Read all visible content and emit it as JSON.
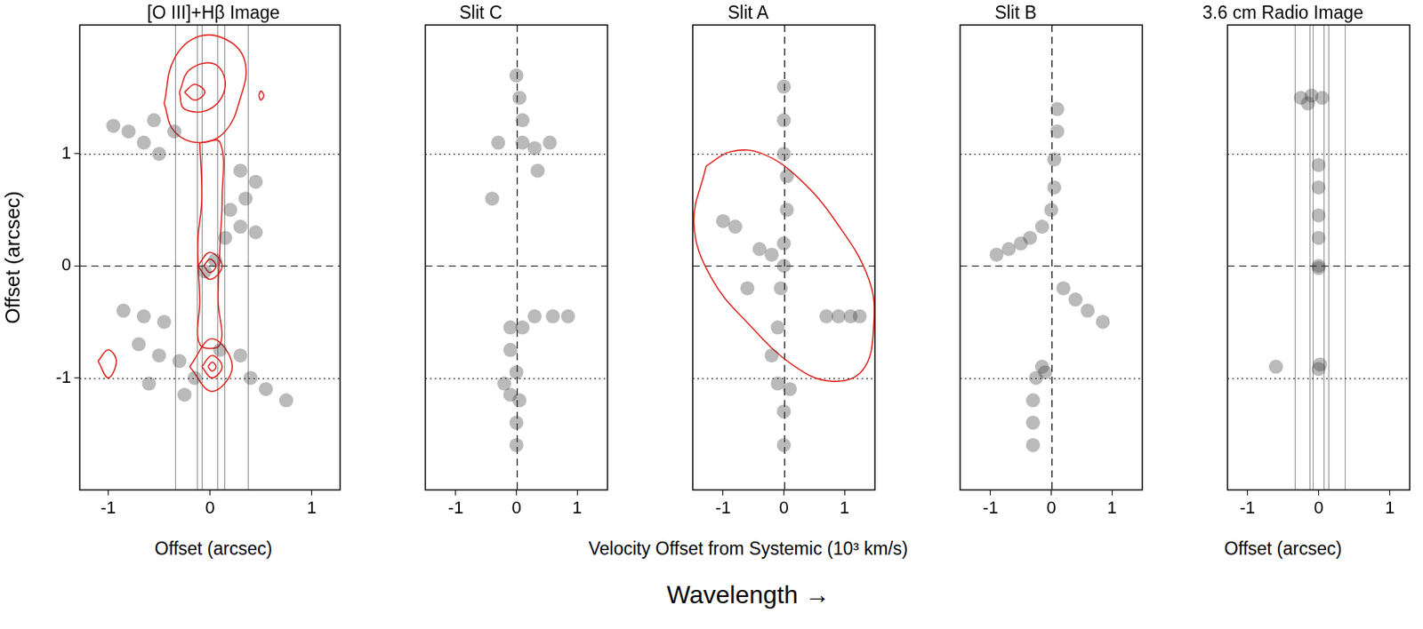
{
  "figure": {
    "x_label": "Velocity Offset from Systemic (10³ km/s)",
    "annotation": "Wavelength →"
  },
  "chart_data": [
    {
      "type": "scatter",
      "title": "[O III]+Hβ Image",
      "x_label": "Offset (arcsec)",
      "y_label": "Offset (arcsec)",
      "xlim": [
        -1.28,
        1.28
      ],
      "ylim": [
        -2,
        2.15
      ],
      "xticks": [
        -1,
        0,
        1
      ],
      "yticks": [
        -1,
        0,
        1
      ],
      "grid": "y",
      "tick_labels": true,
      "slit_edges": [
        -0.34,
        -0.13,
        -0.08,
        0.07,
        0.14,
        0.37
      ],
      "series": [
        {
          "type": "scatter",
          "color": "#3a3a3a",
          "values": [
            [
              -0.95,
              1.25
            ],
            [
              -0.8,
              1.2
            ],
            [
              -0.65,
              1.1
            ],
            [
              -0.5,
              1.0
            ],
            [
              -0.55,
              1.3
            ],
            [
              -0.35,
              1.2
            ],
            [
              0.3,
              0.85
            ],
            [
              0.45,
              0.75
            ],
            [
              0.35,
              0.6
            ],
            [
              0.2,
              0.5
            ],
            [
              0.3,
              0.35
            ],
            [
              0.45,
              0.3
            ],
            [
              0.15,
              0.25
            ],
            [
              0.05,
              0.05
            ],
            [
              -0.05,
              -0.05
            ],
            [
              -0.85,
              -0.4
            ],
            [
              -0.65,
              -0.45
            ],
            [
              -0.45,
              -0.5
            ],
            [
              -0.7,
              -0.7
            ],
            [
              -0.5,
              -0.8
            ],
            [
              -0.3,
              -0.85
            ],
            [
              -0.15,
              -1.0
            ],
            [
              -0.25,
              -1.15
            ],
            [
              0.1,
              -0.75
            ],
            [
              0.3,
              -0.8
            ],
            [
              0.4,
              -1.0
            ],
            [
              0.55,
              -1.1
            ],
            [
              0.75,
              -1.2
            ],
            [
              -0.6,
              -1.05
            ]
          ]
        },
        {
          "type": "line",
          "color": "#e0201b",
          "values": [
            [
              -0.45,
              1.45
            ],
            [
              -0.35,
              1.85
            ],
            [
              -0.1,
              2.05
            ],
            [
              0.2,
              2.0
            ],
            [
              0.35,
              1.8
            ],
            [
              0.3,
              1.5
            ],
            [
              0.15,
              1.2
            ],
            [
              -0.1,
              1.1
            ],
            [
              -0.35,
              1.2
            ],
            [
              -0.45,
              1.45
            ]
          ]
        },
        {
          "type": "line",
          "color": "#e0201b",
          "values": [
            [
              -0.3,
              1.55
            ],
            [
              -0.2,
              1.75
            ],
            [
              0.05,
              1.8
            ],
            [
              0.15,
              1.6
            ],
            [
              0.0,
              1.4
            ],
            [
              -0.25,
              1.4
            ],
            [
              -0.3,
              1.55
            ]
          ]
        },
        {
          "type": "line",
          "color": "#e0201b",
          "values": [
            [
              -0.25,
              1.55
            ],
            [
              -0.15,
              1.62
            ],
            [
              -0.05,
              1.55
            ],
            [
              -0.15,
              1.48
            ],
            [
              -0.25,
              1.55
            ]
          ]
        },
        {
          "type": "line",
          "color": "#e0201b",
          "values": [
            [
              -0.1,
              1.1
            ],
            [
              -0.08,
              0.6
            ],
            [
              -0.12,
              0.2
            ],
            [
              -0.1,
              -0.3
            ],
            [
              -0.1,
              -0.7
            ],
            [
              0.1,
              -0.7
            ],
            [
              0.08,
              -0.3
            ],
            [
              0.1,
              0.2
            ],
            [
              0.12,
              0.6
            ],
            [
              0.1,
              1.1
            ],
            [
              -0.1,
              1.1
            ]
          ]
        },
        {
          "type": "line",
          "color": "#e0201b",
          "values": [
            [
              -0.12,
              0.0
            ],
            [
              0.0,
              0.12
            ],
            [
              0.12,
              0.0
            ],
            [
              0.0,
              -0.12
            ],
            [
              -0.12,
              0.0
            ]
          ]
        },
        {
          "type": "line",
          "color": "#e0201b",
          "values": [
            [
              -0.06,
              0.0
            ],
            [
              0.0,
              0.06
            ],
            [
              0.06,
              0.0
            ],
            [
              0.0,
              -0.06
            ],
            [
              -0.06,
              0.0
            ]
          ]
        },
        {
          "type": "line",
          "color": "#e0201b",
          "values": [
            [
              -0.2,
              -0.9
            ],
            [
              0.02,
              -0.65
            ],
            [
              0.22,
              -0.9
            ],
            [
              0.02,
              -1.12
            ],
            [
              -0.2,
              -0.9
            ]
          ]
        },
        {
          "type": "line",
          "color": "#e0201b",
          "values": [
            [
              -0.08,
              -0.9
            ],
            [
              0.02,
              -0.8
            ],
            [
              0.12,
              -0.9
            ],
            [
              0.02,
              -1.0
            ],
            [
              -0.08,
              -0.9
            ]
          ]
        },
        {
          "type": "line",
          "color": "#e0201b",
          "values": [
            [
              -0.02,
              -0.9
            ],
            [
              0.02,
              -0.86
            ],
            [
              0.06,
              -0.9
            ],
            [
              0.02,
              -0.94
            ],
            [
              -0.02,
              -0.9
            ]
          ]
        },
        {
          "type": "line",
          "color": "#e0201b",
          "values": [
            [
              -1.1,
              -0.85
            ],
            [
              -1.0,
              -0.75
            ],
            [
              -0.92,
              -0.85
            ],
            [
              -1.0,
              -1.0
            ],
            [
              -1.1,
              -0.85
            ]
          ]
        },
        {
          "type": "line",
          "color": "#e0201b",
          "values": [
            [
              0.48,
              1.52
            ],
            [
              0.5,
              1.56
            ],
            [
              0.53,
              1.52
            ],
            [
              0.5,
              1.48
            ],
            [
              0.48,
              1.52
            ]
          ]
        }
      ]
    },
    {
      "type": "scatter",
      "title": "Slit C",
      "xlim": [
        -1.5,
        1.5
      ],
      "ylim": [
        -2,
        2.15
      ],
      "xticks": [
        -1,
        0,
        1
      ],
      "yticks": [
        -1,
        0,
        1
      ],
      "grid": true,
      "tick_labels": "x",
      "series": [
        {
          "type": "scatter",
          "color": "#3a3a3a",
          "values": [
            [
              0.0,
              1.7
            ],
            [
              0.05,
              1.5
            ],
            [
              0.1,
              1.3
            ],
            [
              0.1,
              1.1
            ],
            [
              0.3,
              1.05
            ],
            [
              0.35,
              0.85
            ],
            [
              -0.3,
              1.1
            ],
            [
              0.55,
              1.1
            ],
            [
              -0.4,
              0.6
            ],
            [
              -0.1,
              -0.55
            ],
            [
              0.1,
              -0.55
            ],
            [
              0.3,
              -0.45
            ],
            [
              0.6,
              -0.45
            ],
            [
              0.85,
              -0.45
            ],
            [
              -0.1,
              -0.75
            ],
            [
              0.0,
              -0.95
            ],
            [
              -0.2,
              -1.05
            ],
            [
              0.05,
              -1.2
            ],
            [
              -0.1,
              -1.15
            ],
            [
              0.0,
              -1.4
            ],
            [
              0.0,
              -1.6
            ]
          ]
        }
      ]
    },
    {
      "type": "scatter",
      "title": "Slit A",
      "xlim": [
        -1.5,
        1.5
      ],
      "ylim": [
        -2,
        2.15
      ],
      "xticks": [
        -1,
        0,
        1
      ],
      "yticks": [
        -1,
        0,
        1
      ],
      "grid": true,
      "tick_labels": "x",
      "series": [
        {
          "type": "scatter",
          "color": "#3a3a3a",
          "values": [
            [
              0.0,
              1.6
            ],
            [
              0.0,
              1.3
            ],
            [
              0.0,
              1.0
            ],
            [
              0.05,
              0.8
            ],
            [
              0.05,
              0.5
            ],
            [
              0.0,
              0.2
            ],
            [
              0.0,
              0.0
            ],
            [
              -0.05,
              -0.2
            ],
            [
              -0.1,
              -0.55
            ],
            [
              -0.2,
              -0.8
            ],
            [
              -1.0,
              0.4
            ],
            [
              -0.8,
              0.35
            ],
            [
              -0.4,
              0.15
            ],
            [
              -0.2,
              0.1
            ],
            [
              -0.6,
              -0.2
            ],
            [
              0.7,
              -0.45
            ],
            [
              0.9,
              -0.45
            ],
            [
              1.1,
              -0.45
            ],
            [
              1.25,
              -0.45
            ],
            [
              -0.1,
              -1.05
            ],
            [
              0.1,
              -1.1
            ],
            [
              0.0,
              -1.3
            ],
            [
              0.0,
              -1.6
            ]
          ]
        },
        {
          "type": "line",
          "color": "#e0201b",
          "values": [
            [
              -1.28,
              0.89
            ],
            [
              -0.87,
              1.02
            ],
            [
              -0.35,
              1.0
            ],
            [
              0.27,
              0.77
            ],
            [
              0.89,
              0.37
            ],
            [
              1.4,
              -0.12
            ],
            [
              1.48,
              -0.53
            ],
            [
              1.3,
              -0.93
            ],
            [
              0.78,
              -1.03
            ],
            [
              0.16,
              -0.89
            ],
            [
              -0.56,
              -0.53
            ],
            [
              -1.18,
              -0.12
            ],
            [
              -1.48,
              0.37
            ],
            [
              -1.28,
              0.89
            ]
          ]
        }
      ]
    },
    {
      "type": "scatter",
      "title": "Slit B",
      "xlim": [
        -1.5,
        1.5
      ],
      "ylim": [
        -2,
        2.15
      ],
      "xticks": [
        -1,
        0,
        1
      ],
      "yticks": [
        -1,
        0,
        1
      ],
      "grid": true,
      "tick_labels": "x",
      "series": [
        {
          "type": "scatter",
          "color": "#3a3a3a",
          "values": [
            [
              -0.9,
              0.1
            ],
            [
              -0.7,
              0.15
            ],
            [
              -0.5,
              0.2
            ],
            [
              -0.35,
              0.25
            ],
            [
              -0.15,
              0.35
            ],
            [
              0.0,
              0.5
            ],
            [
              0.05,
              0.7
            ],
            [
              0.05,
              0.95
            ],
            [
              0.1,
              1.2
            ],
            [
              0.1,
              1.4
            ],
            [
              0.2,
              -0.2
            ],
            [
              0.4,
              -0.3
            ],
            [
              0.6,
              -0.4
            ],
            [
              0.85,
              -0.5
            ],
            [
              -0.15,
              -0.9
            ],
            [
              -0.25,
              -1.0
            ],
            [
              -0.3,
              -1.2
            ],
            [
              -0.3,
              -1.4
            ],
            [
              -0.3,
              -1.6
            ],
            [
              -0.1,
              -0.95
            ]
          ]
        }
      ]
    },
    {
      "type": "scatter",
      "title": "3.6 cm Radio Image",
      "x_label": "Offset (arcsec)",
      "xlim": [
        -1.28,
        1.28
      ],
      "ylim": [
        -2,
        2.15
      ],
      "xticks": [
        -1,
        0,
        1
      ],
      "yticks": [
        -1,
        0,
        1
      ],
      "grid": "y",
      "tick_labels": "x",
      "slit_edges": [
        -0.34,
        -0.13,
        -0.08,
        0.07,
        0.14,
        0.37
      ],
      "series": [
        {
          "type": "scatter",
          "color": "#3a3a3a",
          "values": [
            [
              -0.25,
              1.5
            ],
            [
              -0.1,
              1.52
            ],
            [
              0.05,
              1.5
            ],
            [
              -0.15,
              1.45
            ],
            [
              0.0,
              0.9
            ],
            [
              0.0,
              0.7
            ],
            [
              0.0,
              0.45
            ],
            [
              0.0,
              0.25
            ],
            [
              0.0,
              0.0
            ],
            [
              0.0,
              -0.02
            ],
            [
              0.02,
              -0.88
            ],
            [
              0.0,
              -0.92
            ],
            [
              -0.6,
              -0.9
            ]
          ]
        }
      ]
    }
  ]
}
